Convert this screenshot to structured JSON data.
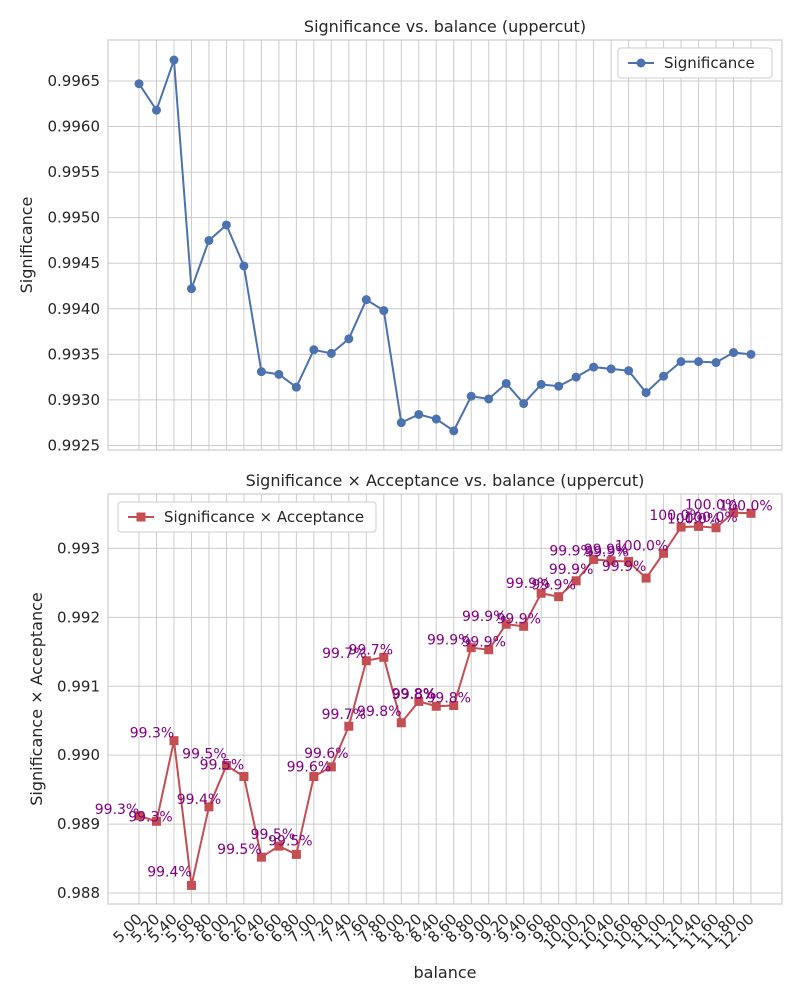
{
  "chart_data": [
    {
      "type": "line",
      "title": "Significance vs. balance (uppercut)",
      "xlabel": "",
      "ylabel": "Significance",
      "ylim": [
        0.99245,
        0.99695
      ],
      "yticks": [
        "0.9925",
        "0.9930",
        "0.9935",
        "0.9940",
        "0.9945",
        "0.9950",
        "0.9955",
        "0.9960",
        "0.9965"
      ],
      "grid": true,
      "legend_position": "top-right",
      "series": [
        {
          "name": "Significance",
          "color": "#4c72b0",
          "marker": "circle",
          "values": [
            0.99647,
            0.99618,
            0.99673,
            0.99422,
            0.99475,
            0.99492,
            0.99447,
            0.99331,
            0.99328,
            0.99314,
            0.99355,
            0.99351,
            0.99367,
            0.9941,
            0.99398,
            0.99275,
            0.99284,
            0.99279,
            0.99266,
            0.99304,
            0.99301,
            0.99318,
            0.99296,
            0.99317,
            0.99315,
            0.99325,
            0.99336,
            0.99334,
            0.99332,
            0.99308,
            0.99326,
            0.99342,
            0.99342,
            0.99341,
            0.99352,
            0.9935
          ]
        }
      ]
    },
    {
      "type": "line",
      "title": "Significance × Acceptance vs. balance (uppercut)",
      "xlabel": "balance",
      "ylabel": "Significance × Acceptance",
      "ylim": [
        0.98784,
        0.99379
      ],
      "yticks": [
        "0.988",
        "0.989",
        "0.990",
        "0.991",
        "0.992",
        "0.993"
      ],
      "grid": true,
      "legend_position": "top-left",
      "annotation_color": "#800080",
      "series": [
        {
          "name": "Significance × Acceptance",
          "color": "#c44e52",
          "marker": "square",
          "values": [
            0.98912,
            0.98904,
            0.99021,
            0.98811,
            0.98925,
            0.98985,
            0.98969,
            0.98852,
            0.98868,
            0.98856,
            0.98969,
            0.98983,
            0.99042,
            0.99137,
            0.99142,
            0.99047,
            0.99078,
            0.99071,
            0.99072,
            0.99156,
            0.99153,
            0.9919,
            0.99187,
            0.99235,
            0.9923,
            0.99253,
            0.99284,
            0.99282,
            0.99281,
            0.99257,
            0.99293,
            0.99331,
            0.99332,
            0.9933,
            0.99352,
            0.99351
          ],
          "labels": [
            "99.3%",
            "99.3%",
            "99.3%",
            "99.4%",
            "99.4%",
            "99.5%",
            "99.5%",
            "99.5%",
            "99.5%",
            "99.5%",
            "99.6%",
            "99.6%",
            "99.7%",
            "99.7%",
            "99.7%",
            "99.8%",
            "99.8%",
            "99.8%",
            "99.8%",
            "99.9%",
            "99.9%",
            "99.9%",
            "99.9%",
            "99.9%",
            "99.9%",
            "99.9%",
            "99.9%",
            "99.9%",
            "99.9%",
            "99.9%",
            "100.0%",
            "100.0%",
            "100.0%",
            "100.0%",
            "100.0%",
            "100.0%"
          ]
        }
      ]
    }
  ],
  "x_categories": [
    "5.00",
    "5.20",
    "5.40",
    "5.60",
    "5.80",
    "6.00",
    "6.20",
    "6.40",
    "6.60",
    "6.80",
    "7.00",
    "7.20",
    "7.40",
    "7.60",
    "7.80",
    "8.00",
    "8.20",
    "8.40",
    "8.60",
    "8.80",
    "9.00",
    "9.20",
    "9.40",
    "9.60",
    "9.80",
    "10.00",
    "10.20",
    "10.40",
    "10.60",
    "10.80",
    "11.00",
    "11.20",
    "11.40",
    "11.60",
    "11.80",
    "12.00"
  ]
}
